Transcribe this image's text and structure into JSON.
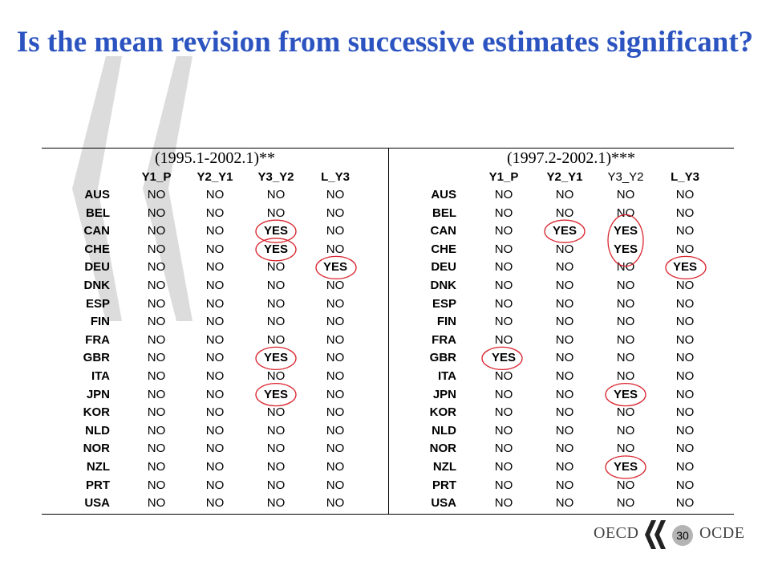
{
  "title": "Is the mean revision from successive estimates significant?",
  "footer": {
    "left_text": "OECD",
    "right_text": "OCDE",
    "page_number": "30"
  },
  "table": {
    "columns": [
      "Y1_P",
      "Y2_Y1",
      "Y3_Y2",
      "L_Y3"
    ],
    "rows": [
      "AUS",
      "BEL",
      "CAN",
      "CHE",
      "DEU",
      "DNK",
      "ESP",
      "FIN",
      "FRA",
      "GBR",
      "ITA",
      "JPN",
      "KOR",
      "NLD",
      "NOR",
      "NZL",
      "PRT",
      "USA"
    ],
    "panels": [
      {
        "period": "(1995.1-2002.1)**",
        "values": [
          [
            "NO",
            "NO",
            "NO",
            "NO"
          ],
          [
            "NO",
            "NO",
            "NO",
            "NO"
          ],
          [
            "NO",
            "NO",
            "YES",
            "NO"
          ],
          [
            "NO",
            "NO",
            "YES",
            "NO"
          ],
          [
            "NO",
            "NO",
            "NO",
            "YES"
          ],
          [
            "NO",
            "NO",
            "NO",
            "NO"
          ],
          [
            "NO",
            "NO",
            "NO",
            "NO"
          ],
          [
            "NO",
            "NO",
            "NO",
            "NO"
          ],
          [
            "NO",
            "NO",
            "NO",
            "NO"
          ],
          [
            "NO",
            "NO",
            "YES",
            "NO"
          ],
          [
            "NO",
            "NO",
            "NO",
            "NO"
          ],
          [
            "NO",
            "NO",
            "YES",
            "NO"
          ],
          [
            "NO",
            "NO",
            "NO",
            "NO"
          ],
          [
            "NO",
            "NO",
            "NO",
            "NO"
          ],
          [
            "NO",
            "NO",
            "NO",
            "NO"
          ],
          [
            "NO",
            "NO",
            "NO",
            "NO"
          ],
          [
            "NO",
            "NO",
            "NO",
            "NO"
          ],
          [
            "NO",
            "NO",
            "NO",
            "NO"
          ]
        ]
      },
      {
        "period": "(1997.2-2002.1)***",
        "values": [
          [
            "NO",
            "NO",
            "NO",
            "NO"
          ],
          [
            "NO",
            "NO",
            "NO",
            "NO"
          ],
          [
            "NO",
            "YES",
            "YES",
            "NO"
          ],
          [
            "NO",
            "NO",
            "YES",
            "NO"
          ],
          [
            "NO",
            "NO",
            "NO",
            "YES"
          ],
          [
            "NO",
            "NO",
            "NO",
            "NO"
          ],
          [
            "NO",
            "NO",
            "NO",
            "NO"
          ],
          [
            "NO",
            "NO",
            "NO",
            "NO"
          ],
          [
            "NO",
            "NO",
            "NO",
            "NO"
          ],
          [
            "YES",
            "NO",
            "NO",
            "NO"
          ],
          [
            "NO",
            "NO",
            "NO",
            "NO"
          ],
          [
            "NO",
            "NO",
            "YES",
            "NO"
          ],
          [
            "NO",
            "NO",
            "NO",
            "NO"
          ],
          [
            "NO",
            "NO",
            "NO",
            "NO"
          ],
          [
            "NO",
            "NO",
            "NO",
            "NO"
          ],
          [
            "NO",
            "NO",
            "YES",
            "NO"
          ],
          [
            "NO",
            "NO",
            "NO",
            "NO"
          ],
          [
            "NO",
            "NO",
            "NO",
            "NO"
          ]
        ]
      }
    ]
  },
  "colors": {
    "title": "#2c54c0",
    "highlight_circle": "#d9252f",
    "quote_mark": "#dcdcdc"
  }
}
